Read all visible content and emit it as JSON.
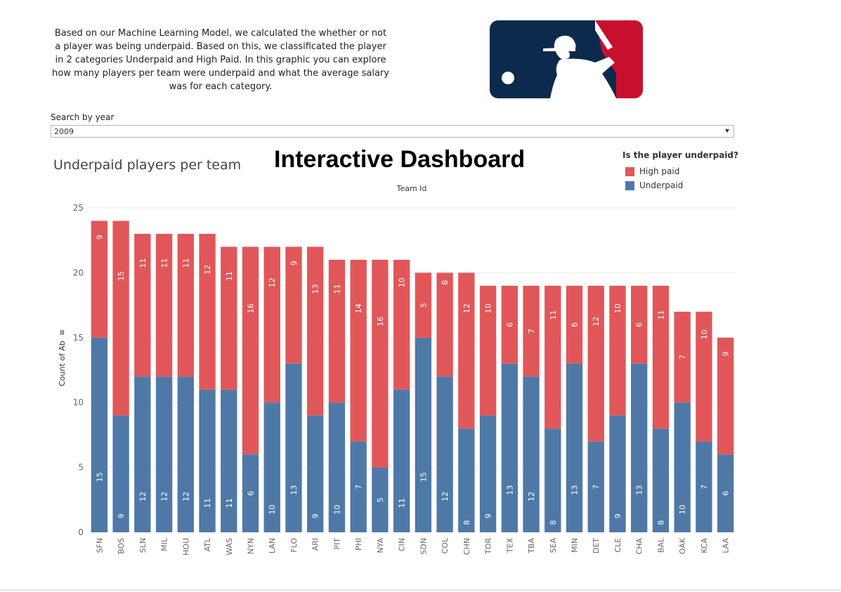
{
  "intro_text": "Based on our Machine Learning Model, we calculated the whether or not a player was being underpaid. Based on this, we classificated the player in 2 categories Underpaid and High Paid. In this graphic you can explore how many players per team were underpaid and what the average salary was for each category.",
  "logo": {
    "name": "mlb-logo",
    "colors": {
      "blue": "#0c2a4d",
      "red": "#c8102e"
    }
  },
  "search": {
    "label": "Search by year",
    "selected": "2009"
  },
  "dashboard_title": "Interactive Dashboard",
  "colors": {
    "high_paid": "#e15759",
    "underpaid": "#4e79a7",
    "grid": "#ececec",
    "axis_text": "#666666"
  },
  "chart_data": {
    "type": "bar",
    "stacked": true,
    "title": "Underpaid players per team",
    "xlabel": "Team Id",
    "ylabel": "Count of Ab",
    "ylim": [
      0,
      25
    ],
    "yticks": [
      0,
      5,
      10,
      15,
      20,
      25
    ],
    "grid": true,
    "legend": {
      "title": "Is the player underpaid?",
      "position": "top-right",
      "entries": [
        "High paid",
        "Underpaid"
      ]
    },
    "categories": [
      "SFN",
      "BOS",
      "SLN",
      "MIL",
      "HOU",
      "ATL",
      "WAS",
      "NYN",
      "LAN",
      "FLO",
      "ARI",
      "PIT",
      "PHI",
      "NYA",
      "CIN",
      "SDN",
      "COL",
      "CHN",
      "TOR",
      "TEX",
      "TBA",
      "SEA",
      "MIN",
      "DET",
      "CLE",
      "CHA",
      "BAL",
      "OAK",
      "KCA",
      "LAA"
    ],
    "series": [
      {
        "name": "Underpaid",
        "color": "#4e79a7",
        "values": [
          15,
          9,
          12,
          12,
          12,
          11,
          11,
          6,
          10,
          13,
          9,
          10,
          7,
          5,
          11,
          15,
          12,
          8,
          9,
          13,
          12,
          8,
          13,
          7,
          9,
          13,
          8,
          10,
          7,
          6
        ]
      },
      {
        "name": "High paid",
        "color": "#e15759",
        "values": [
          9,
          15,
          11,
          11,
          11,
          12,
          11,
          16,
          12,
          9,
          13,
          11,
          14,
          16,
          10,
          5,
          8,
          12,
          10,
          6,
          7,
          11,
          6,
          12,
          10,
          6,
          11,
          7,
          10,
          9
        ]
      }
    ]
  }
}
